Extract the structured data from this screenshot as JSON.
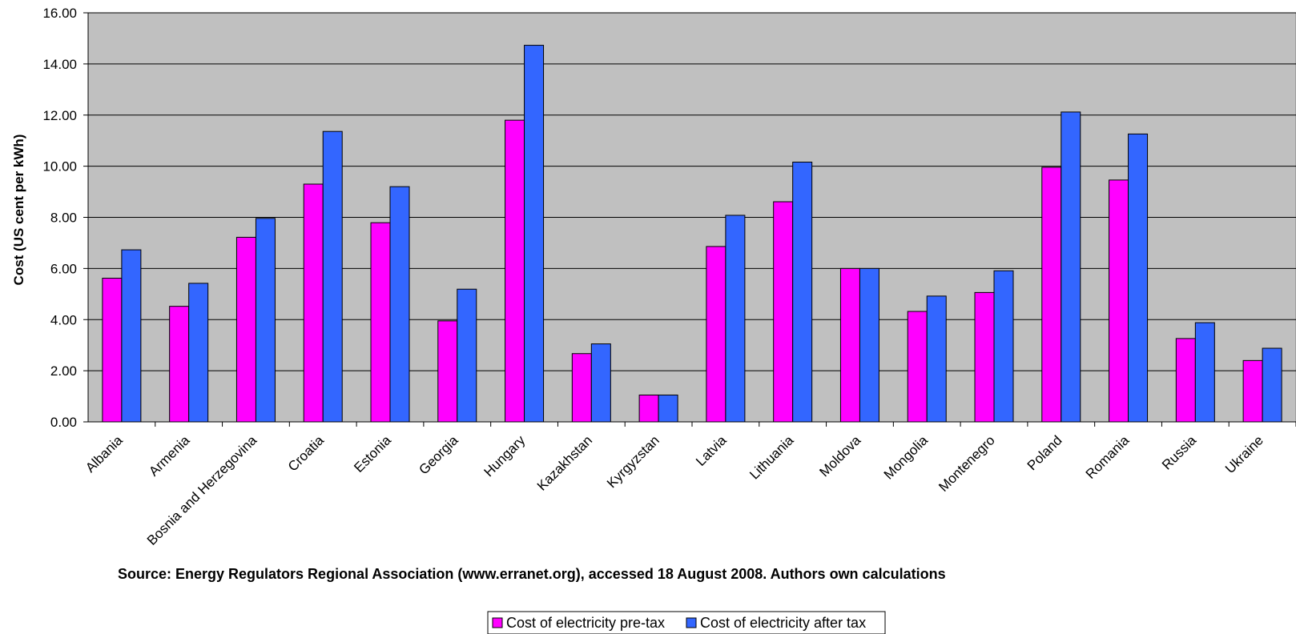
{
  "chart_data": {
    "type": "bar",
    "ylabel": "Cost (US cent per kWh)",
    "xlabel": "",
    "ylim": [
      0,
      16
    ],
    "ytick_step": 2,
    "ytick_labels": [
      "0.00",
      "2.00",
      "4.00",
      "6.00",
      "8.00",
      "10.00",
      "12.00",
      "14.00",
      "16.00"
    ],
    "grid": true,
    "legend_position": "bottom-center",
    "plot_background": "#C0C0C0",
    "categories": [
      "Albania",
      "Armenia",
      "Bosnia and Herzegovina",
      "Croatia",
      "Estonia",
      "Georgia",
      "Hungary",
      "Kazakhstan",
      "Kyrgyzstan",
      "Latvia",
      "Lithuania",
      "Moldova",
      "Mongolia",
      "Montenegro",
      "Poland",
      "Romania",
      "Russia",
      "Ukraine"
    ],
    "series": [
      {
        "name": "Cost of electricity pre-tax",
        "color": "#FF00FF",
        "values": [
          5.62,
          4.52,
          7.22,
          9.3,
          7.79,
          3.95,
          11.8,
          2.67,
          1.05,
          6.86,
          8.61,
          6.0,
          4.32,
          5.06,
          9.96,
          9.46,
          3.26,
          2.4
        ]
      },
      {
        "name": "Cost of electricity after tax",
        "color": "#3366FF",
        "values": [
          6.73,
          5.42,
          7.96,
          11.36,
          9.2,
          5.19,
          14.73,
          3.05,
          1.05,
          8.08,
          10.16,
          6.0,
          4.92,
          5.91,
          12.12,
          11.26,
          3.88,
          2.88
        ]
      }
    ]
  },
  "source_note": "Source: Energy Regulators Regional Association (www.erranet.org), accessed 18 August 2008. Authors own calculations"
}
